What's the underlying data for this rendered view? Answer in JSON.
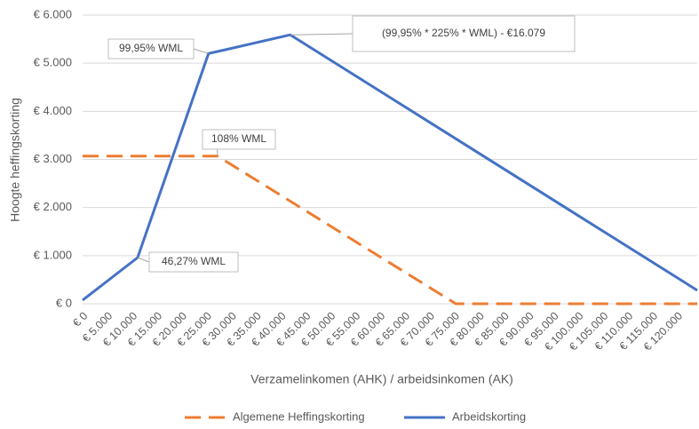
{
  "chart_data": {
    "type": "line",
    "x_label": "Verzamelinkomen (AHK) / arbeidsinkomen (AK)",
    "y_label": "Hoogte heffingskorting",
    "xlim": [
      0,
      124000
    ],
    "ylim": [
      0,
      6000
    ],
    "grid": true,
    "legend": "bottom",
    "xticks": [
      {
        "value": 0,
        "label": "€ 0"
      },
      {
        "value": 5000,
        "label": "€ 5.000"
      },
      {
        "value": 10000,
        "label": "€ 10.000"
      },
      {
        "value": 15000,
        "label": "€ 15.000"
      },
      {
        "value": 20000,
        "label": "€ 20.000"
      },
      {
        "value": 25000,
        "label": "€ 25.000"
      },
      {
        "value": 30000,
        "label": "€ 30.000"
      },
      {
        "value": 35000,
        "label": "€ 35.000"
      },
      {
        "value": 40000,
        "label": "€ 40.000"
      },
      {
        "value": 45000,
        "label": "€ 45.000"
      },
      {
        "value": 50000,
        "label": "€ 50.000"
      },
      {
        "value": 55000,
        "label": "€ 55.000"
      },
      {
        "value": 60000,
        "label": "€ 60.000"
      },
      {
        "value": 65000,
        "label": "€ 65.000"
      },
      {
        "value": 70000,
        "label": "€ 70.000"
      },
      {
        "value": 75000,
        "label": "€ 75.000"
      },
      {
        "value": 80000,
        "label": "€ 80.000"
      },
      {
        "value": 85000,
        "label": "€ 85.000"
      },
      {
        "value": 90000,
        "label": "€ 90.000"
      },
      {
        "value": 95000,
        "label": "€ 95.000"
      },
      {
        "value": 100000,
        "label": "€ 100.000"
      },
      {
        "value": 105000,
        "label": "€ 105.000"
      },
      {
        "value": 110000,
        "label": "€ 110.000"
      },
      {
        "value": 115000,
        "label": "€ 115.000"
      },
      {
        "value": 120000,
        "label": "€ 120.000"
      }
    ],
    "yticks": [
      {
        "value": 0,
        "label": "€ 0"
      },
      {
        "value": 1000,
        "label": "€ 1.000"
      },
      {
        "value": 2000,
        "label": "€ 2.000"
      },
      {
        "value": 3000,
        "label": "€ 3.000"
      },
      {
        "value": 4000,
        "label": "€ 4.000"
      },
      {
        "value": 5000,
        "label": "€ 5.000"
      },
      {
        "value": 6000,
        "label": "€ 6.000"
      }
    ],
    "series": [
      {
        "name": "Algemene Heffingskorting",
        "color": "#ed7d31",
        "dashed": true,
        "x": [
          0,
          27200,
          75300,
          124000
        ],
        "values": [
          3070,
          3070,
          0,
          0
        ]
      },
      {
        "name": "Arbeidskorting",
        "color": "#4472c4",
        "dashed": false,
        "x": [
          0,
          11100,
          25400,
          41900,
          124000
        ],
        "values": [
          75,
          960,
          5200,
          5590,
          280
        ]
      }
    ],
    "annotations": [
      {
        "text": "99,95% WML",
        "x": 25400,
        "y": 5200
      },
      {
        "text": "(99,95% * 225% * WML) - €16.079",
        "x": 41900,
        "y": 5590
      },
      {
        "text": "108% WML",
        "x": 27200,
        "y": 3070
      },
      {
        "text": "46,27% WML",
        "x": 11100,
        "y": 960
      }
    ]
  }
}
